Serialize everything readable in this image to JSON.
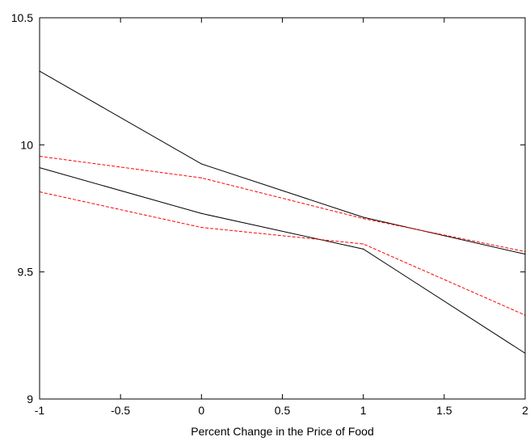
{
  "chart_data": {
    "type": "line",
    "title": "",
    "xlabel": "Percent Change in the Price of Food",
    "ylabel": "",
    "xlim": [
      -1,
      2
    ],
    "ylim": [
      9,
      10.5
    ],
    "grid": false,
    "legend": "none",
    "x_ticks": [
      -1,
      -0.5,
      0,
      0.5,
      1,
      1.5,
      2
    ],
    "x_tick_labels": [
      "-1",
      "-0.5",
      "0",
      "0.5",
      "1",
      "1.5",
      "2"
    ],
    "y_ticks": [
      9,
      9.5,
      10,
      10.5
    ],
    "y_tick_labels": [
      "9",
      "9.5",
      "10",
      "10.5"
    ],
    "x": [
      -1,
      0,
      1,
      2
    ],
    "series": [
      {
        "values": [
          10.29,
          9.925,
          9.715,
          9.57
        ],
        "color": "#000000",
        "style": "solid"
      },
      {
        "values": [
          9.91,
          9.73,
          9.59,
          9.18
        ],
        "color": "#000000",
        "style": "solid"
      },
      {
        "values": [
          9.955,
          9.87,
          9.71,
          9.58
        ],
        "color": "#ff0000",
        "style": "dashed"
      },
      {
        "values": [
          9.815,
          9.675,
          9.61,
          9.33
        ],
        "color": "#ff0000",
        "style": "dashed"
      }
    ]
  }
}
